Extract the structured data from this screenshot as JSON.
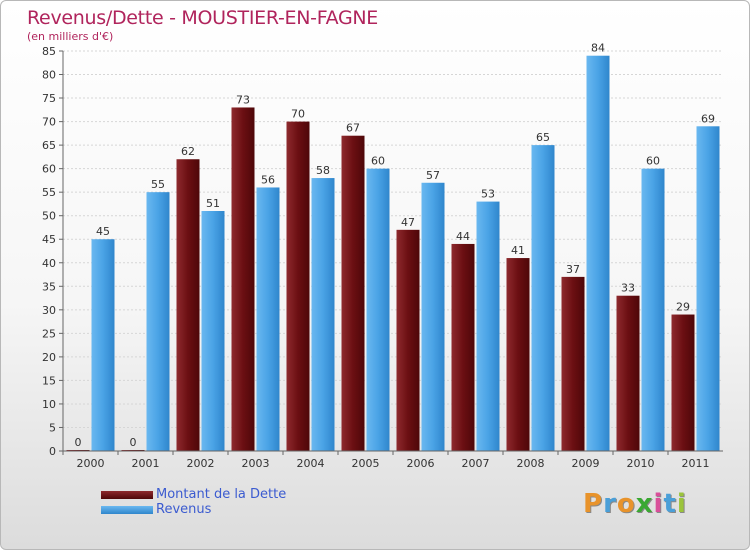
{
  "header": {
    "title": "Revenus/Dette - MOUSTIER-EN-FAGNE",
    "subtitle": "(en milliers d'€)"
  },
  "colors": {
    "dette": "#6b0f12",
    "revenus": "#4aa3e6",
    "title": "#b0245c",
    "legend_text": "#3b5bd0"
  },
  "legend": {
    "dette_label": "Montant de la Dette",
    "revenus_label": "Revenus"
  },
  "logo": {
    "letters": [
      "P",
      "r",
      "o",
      "x",
      "i",
      "t",
      "i"
    ],
    "colors": [
      "#e8932b",
      "#4a9fd8",
      "#e8932b",
      "#3aa832",
      "#d94f9a",
      "#4a9fd8",
      "#9bc43b"
    ]
  },
  "chart_data": {
    "type": "bar",
    "title": "Revenus/Dette - MOUSTIER-EN-FAGNE",
    "subtitle": "(en milliers d'€)",
    "categories": [
      "2000",
      "2001",
      "2002",
      "2003",
      "2004",
      "2005",
      "2006",
      "2007",
      "2008",
      "2009",
      "2010",
      "2011"
    ],
    "series": [
      {
        "name": "Montant de la Dette",
        "color": "#6b0f12",
        "values": [
          0,
          0,
          62,
          73,
          70,
          67,
          47,
          44,
          41,
          37,
          33,
          29
        ]
      },
      {
        "name": "Revenus",
        "color": "#4aa3e6",
        "values": [
          45,
          55,
          51,
          56,
          58,
          60,
          57,
          53,
          65,
          84,
          60,
          69
        ]
      }
    ],
    "ylim": [
      0,
      85
    ],
    "ytick_step": 5,
    "grid": true,
    "legend_position": "bottom-left"
  }
}
